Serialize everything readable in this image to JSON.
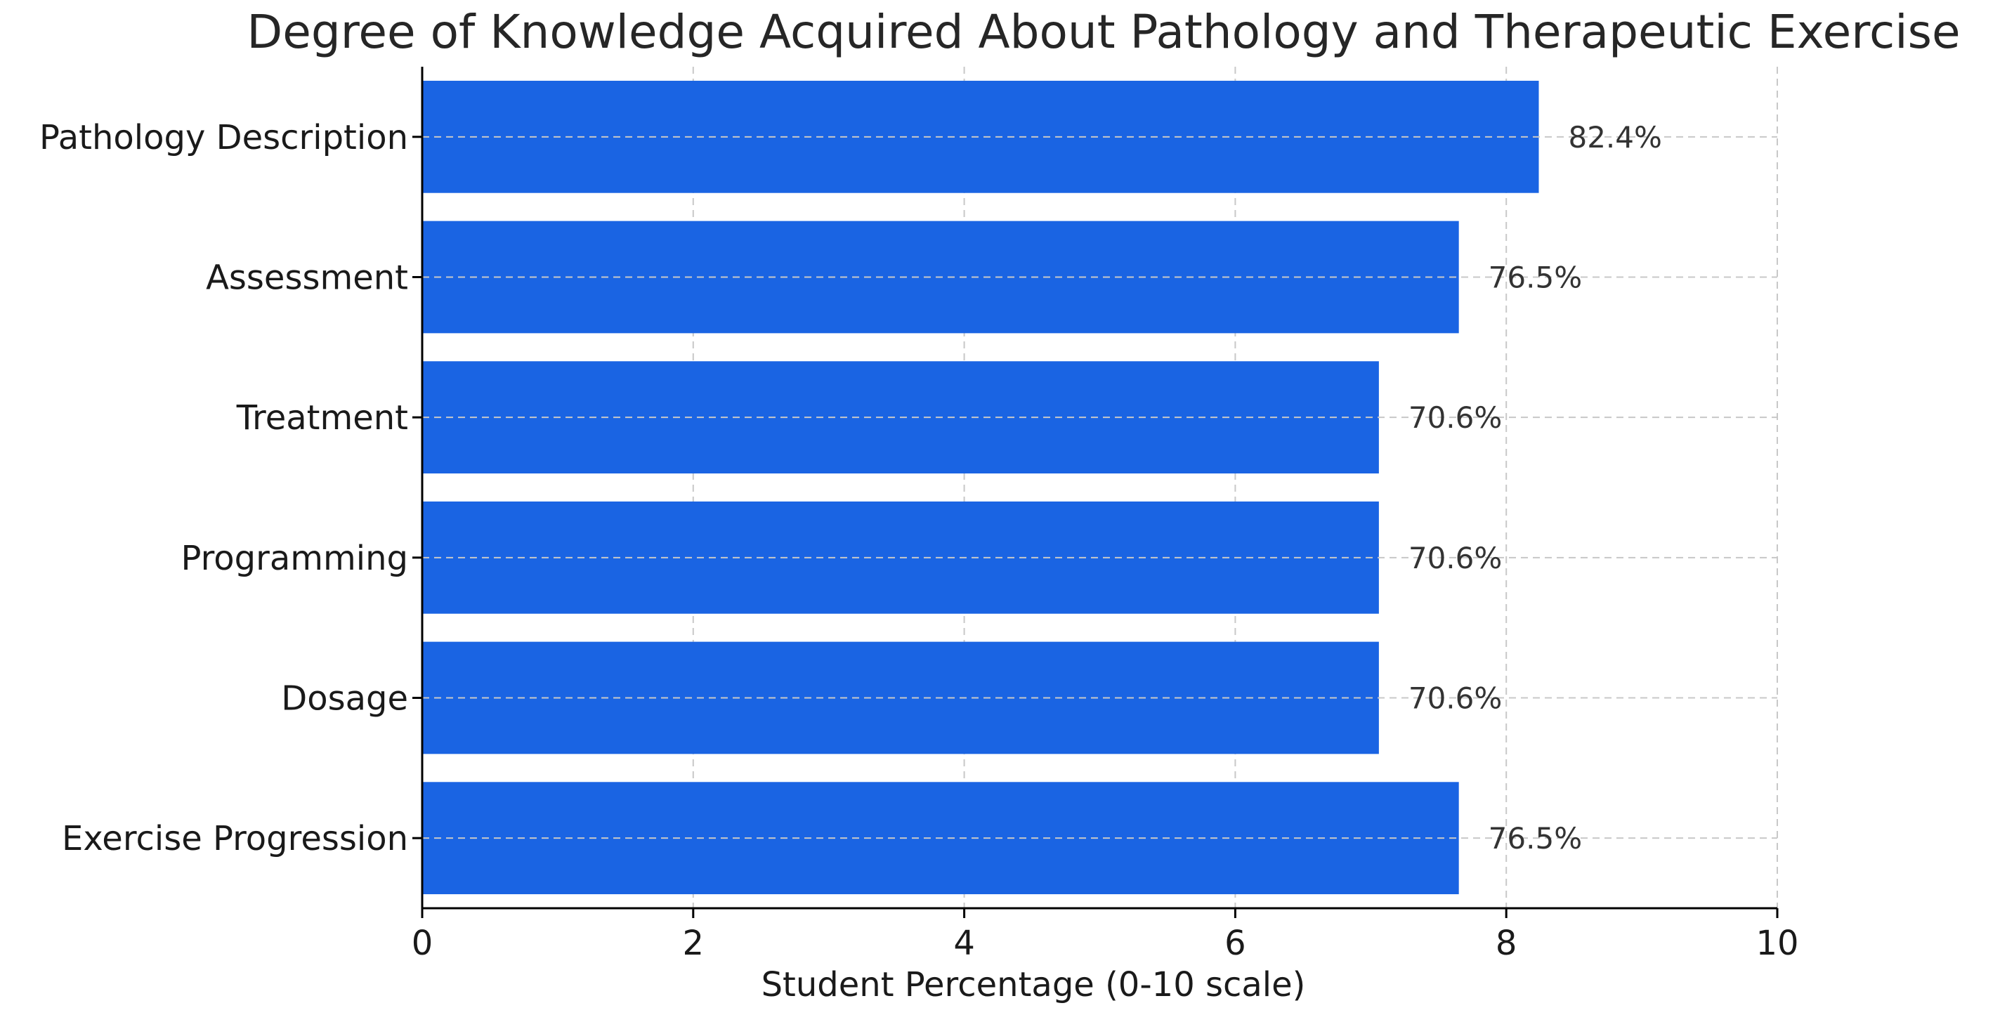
{
  "chart_data": {
    "type": "bar",
    "orientation": "horizontal",
    "title": "Degree of Knowledge Acquired About Pathology and Therapeutic Exercise",
    "xlabel": "Student Percentage (0-10 scale)",
    "ylabel": "",
    "xlim": [
      0,
      10
    ],
    "xticks": [
      "0",
      "2",
      "4",
      "6",
      "8",
      "10"
    ],
    "categories": [
      "Pathology Description",
      "Assessment",
      "Treatment",
      "Programming",
      "Dosage",
      "Exercise Progression"
    ],
    "values": [
      8.24,
      7.65,
      7.06,
      7.06,
      7.06,
      7.65
    ],
    "value_labels": [
      "82.4%",
      "76.5%",
      "70.6%",
      "70.6%",
      "70.6%",
      "76.5%"
    ],
    "bar_color": "#1a64e3",
    "grid": true,
    "grid_style": "dashed"
  }
}
